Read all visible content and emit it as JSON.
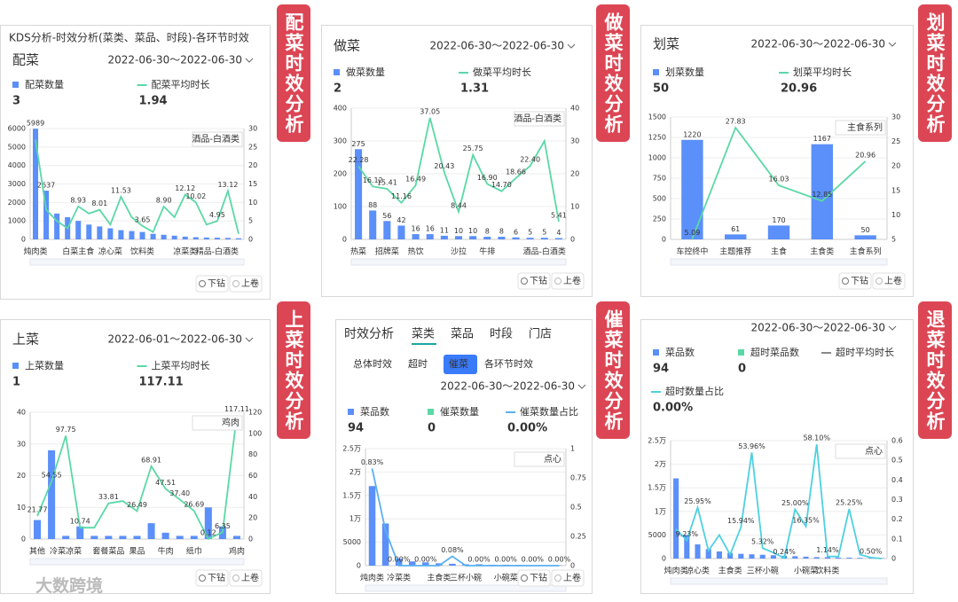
{
  "header": "KDS分析-时效分析(菜类、菜品、时段)-各环节时效",
  "watermark": "大数跨境",
  "buttons": [
    "下钻",
    "上卷"
  ],
  "panels": [
    {
      "tag": "配菜时效分析",
      "title": "配菜",
      "date": "2022-06-30～2022-06-30",
      "metrics": [
        {
          "name": "配菜数量",
          "value": 3,
          "color": "#5b8ff9",
          "shape": "square"
        },
        {
          "name": "配菜平均时长",
          "value": 1.94,
          "color": "#5ad8a6",
          "shape": "line"
        }
      ],
      "chart": {
        "type": "bar-line",
        "hover_label": "酒品-白酒类",
        "categories": [
          "炖肉类",
          null,
          null,
          null,
          "白菜主食",
          null,
          null,
          "凉心菜",
          null,
          null,
          "饮料类",
          null,
          null,
          null,
          "凉菜类",
          null,
          null,
          "精品-白酒类",
          null,
          null
        ],
        "ylim": [
          0,
          6000
        ],
        "yticks": [
          0,
          1000,
          2000,
          3000,
          4000,
          5000,
          6000
        ],
        "y2lim": [
          0,
          30
        ],
        "y2ticks": [
          0,
          5,
          10,
          15,
          20,
          25,
          30
        ],
        "series": [
          {
            "color": "#5b8ff9",
            "values": [
              5989,
              2637,
              1400,
              1200,
              1000,
              800,
              700,
              600,
              500,
              450,
              400,
              300,
              250,
              200,
              150,
              120,
              100,
              90,
              80,
              60
            ],
            "value_labels": [
              "5989",
              "2637",
              null,
              null,
              null,
              null,
              null,
              null,
              null,
              null,
              null,
              null,
              null,
              null,
              null,
              null,
              null,
              null,
              null,
              null
            ]
          },
          {
            "color": "#5ad8a6",
            "axis": "y2",
            "values": [
              27,
              8,
              5,
              3,
              8.93,
              7,
              8.01,
              4,
              11.53,
              6,
              3.65,
              2,
              8.9,
              6,
              12.12,
              10.02,
              4,
              4.95,
              13.12,
              1.5
            ],
            "value_labels": [
              null,
              null,
              null,
              null,
              "8.93",
              null,
              "8.01",
              null,
              "11.53",
              null,
              "3.65",
              null,
              "8.90",
              null,
              "12.12",
              "10.02",
              null,
              "4.95",
              "13.12",
              null
            ]
          }
        ]
      },
      "buttons": true
    },
    {
      "tag": "做菜时效分析",
      "title": "做菜",
      "date": "2022-06-30～2022-06-30",
      "metrics": [
        {
          "name": "做菜数量",
          "value": 2,
          "color": "#5b8ff9",
          "shape": "square"
        },
        {
          "name": "做菜平均时长",
          "value": 1.31,
          "color": "#5ad8a6",
          "shape": "line"
        }
      ],
      "chart": {
        "type": "bar-line",
        "hover_label": "酒品-白酒类",
        "categories": [
          "热菜",
          null,
          "招牌菜",
          null,
          "热饮",
          null,
          null,
          "沙拉",
          null,
          "牛排",
          null,
          null,
          null,
          "酒品-白酒类",
          null
        ],
        "ylim": [
          0,
          400
        ],
        "yticks": [
          0,
          100,
          200,
          300,
          400
        ],
        "y2lim": [
          0,
          40
        ],
        "y2ticks": [
          0,
          10,
          20,
          30,
          40
        ],
        "series": [
          {
            "color": "#5b8ff9",
            "values": [
              275,
              88,
              56,
              42,
              16,
              16,
              11,
              10,
              10,
              8,
              8,
              6,
              5,
              5,
              4
            ],
            "value_labels": [
              "275",
              "88",
              "56",
              "42",
              "16",
              "16",
              "11",
              "10",
              "10",
              "8",
              "8",
              "6",
              "5",
              "5",
              "4"
            ]
          },
          {
            "color": "#5ad8a6",
            "axis": "y2",
            "values": [
              22.28,
              16.12,
              15.41,
              11.16,
              16.49,
              37.05,
              20.43,
              8.44,
              25.75,
              16.9,
              14.7,
              18.66,
              22.4,
              30,
              5.41
            ],
            "value_labels": [
              "22.28",
              "16.12",
              "15.41",
              "11.16",
              "16.49",
              "37.05",
              "20.43",
              "8.44",
              "25.75",
              "16.90",
              "14.70",
              "18.66",
              "22.40",
              null,
              "5.41"
            ]
          }
        ]
      },
      "buttons": true
    },
    {
      "tag": "划菜时效分析",
      "title": "划菜",
      "date": "2022-06-30～2022-06-30",
      "metrics": [
        {
          "name": "划菜数量",
          "value": 50,
          "color": "#5b8ff9",
          "shape": "square"
        },
        {
          "name": "划菜平均时长",
          "value": 20.96,
          "color": "#5ad8a6",
          "shape": "line"
        }
      ],
      "chart": {
        "type": "bar-line",
        "hover_label": "主食系列",
        "categories": [
          "车控终中",
          "主题推荐",
          "主食",
          "主食类",
          "主食系列"
        ],
        "ylim": [
          0,
          1500
        ],
        "yticks": [
          0,
          250,
          500,
          750,
          1000,
          1250,
          1500
        ],
        "y2lim": [
          5,
          30
        ],
        "y2ticks": [
          5,
          10,
          15,
          20,
          25,
          30
        ],
        "series": [
          {
            "color": "#5b8ff9",
            "values": [
              1220,
              61,
              170,
              1167,
              50
            ],
            "value_labels": [
              "1220",
              "61",
              "170",
              "1167",
              "50"
            ]
          },
          {
            "color": "#5ad8a6",
            "axis": "y2",
            "values": [
              5.09,
              27.83,
              16.03,
              12.85,
              20.96
            ],
            "value_labels": [
              "5.09",
              "27.83",
              "16.03",
              "12.85",
              "20.96"
            ]
          }
        ]
      },
      "buttons": true
    },
    {
      "tag": "上菜时效分析",
      "title": "上菜",
      "date": "2022-06-01～2022-06-30",
      "metrics": [
        {
          "name": "上菜数量",
          "value": 1,
          "color": "#5b8ff9",
          "shape": "square"
        },
        {
          "name": "上菜平均时长",
          "value": 117.11,
          "color": "#5ad8a6",
          "shape": "line"
        }
      ],
      "chart": {
        "type": "bar-line",
        "hover_label": "鸡肉",
        "categories": [
          "其他",
          null,
          "冷菜凉菜",
          null,
          null,
          "套餐菜品",
          null,
          "果品",
          null,
          "牛肉",
          null,
          "纸巾",
          null,
          null,
          "鸡肉"
        ],
        "ylim": [
          0,
          40
        ],
        "yticks": [
          0,
          10,
          20,
          30,
          40
        ],
        "y2lim": [
          0,
          120
        ],
        "y2ticks": [
          0,
          20,
          40,
          60,
          80,
          100,
          120
        ],
        "series": [
          {
            "color": "#5b8ff9",
            "values": [
              6,
              28,
              1,
              4,
              1,
              1,
              1,
              1,
              5,
              2,
              1,
              1,
              10,
              4,
              1
            ],
            "value_labels": [
              null,
              null,
              null,
              null,
              null,
              null,
              null,
              null,
              null,
              null,
              null,
              null,
              null,
              null,
              null
            ]
          },
          {
            "color": "#5ad8a6",
            "axis": "y2",
            "values": [
              21.77,
              54.55,
              97.75,
              10.74,
              10.74,
              33.81,
              36,
              26.49,
              68.91,
              47.51,
              37.4,
              26.69,
              0.12,
              6.35,
              117.11
            ],
            "value_labels": [
              "21.77",
              "54.55",
              "97.75",
              "10.74",
              null,
              "33.81",
              null,
              "26.49",
              "68.91",
              "47.51",
              "37.40",
              "26.69",
              "0.12",
              "6.35",
              "117.11"
            ]
          }
        ]
      },
      "buttons": true
    },
    {
      "tag": "催菜时效分析",
      "tabs": [
        "时效分析",
        "菜类",
        "菜品",
        "时段",
        "门店"
      ],
      "active_tab": 1,
      "subtabs": [
        "总体时效",
        "超时",
        "催菜",
        "各环节时效"
      ],
      "active_subtab": 2,
      "date": "2022-06-30～2022-06-30",
      "metrics": [
        {
          "name": "菜品数",
          "value": 94,
          "color": "#5b8ff9",
          "shape": "square"
        },
        {
          "name": "催菜数量",
          "value": 0,
          "color": "#5ad8a6",
          "shape": "square"
        },
        {
          "name": "催菜数量占比",
          "value": "0.00%",
          "color": "#5ab0f0",
          "shape": "line"
        }
      ],
      "chart": {
        "type": "bar-line",
        "hover_label": "点心",
        "categories": [
          "炖肉类",
          null,
          "冷菜类",
          null,
          null,
          "主食类",
          null,
          "三杯小碗",
          null,
          null,
          "小碗菜",
          null,
          null,
          null,
          "点心"
        ],
        "ylim": [
          0,
          25000
        ],
        "yticks": [
          0,
          5000,
          {
            "value": 10000,
            "label": "1万"
          },
          {
            "value": 15000,
            "label": "1.5万"
          },
          {
            "value": 20000,
            "label": "2万"
          },
          {
            "value": 25000,
            "label": "2.5万"
          }
        ],
        "y2lim": [
          0,
          1
        ],
        "y2ticks": [
          0,
          0.25,
          0.5,
          0.75,
          1
        ],
        "series": [
          {
            "color": "#5b8ff9",
            "values": [
              17000,
              9000,
              1500,
              900,
              700,
              500,
              400,
              300,
              300,
              200,
              200,
              150,
              100,
              100,
              80
            ],
            "value_labels": [
              null,
              null,
              null,
              null,
              null,
              null,
              null,
              null,
              null,
              null,
              null,
              null,
              null,
              null,
              null
            ]
          },
          {
            "color": "#5ab0f0",
            "axis": "y2",
            "values": [
              0.83,
              0.3,
              0,
              0,
              0,
              0,
              0.08,
              0,
              0,
              0,
              0,
              0,
              0,
              0,
              0
            ],
            "value_labels": [
              "0.83%",
              null,
              "0.00%",
              null,
              "0.00%",
              null,
              "0.08%",
              null,
              "0.00%",
              null,
              "0.00%",
              null,
              "0.00%",
              null,
              "0.00%"
            ]
          }
        ]
      },
      "buttons": true
    },
    {
      "tag": "退菜时效分析",
      "date": "2022-06-30～2022-06-30",
      "metrics": [
        {
          "name": "菜品数",
          "value": 94,
          "color": "#5b8ff9",
          "shape": "square"
        },
        {
          "name": "超时菜品数",
          "value": 0,
          "color": "#5ad8a6",
          "shape": "square"
        },
        {
          "name": "超时平均时长",
          "color": "#888888",
          "shape": "line"
        },
        {
          "name": "超时数量占比",
          "value": "0.00%",
          "color": "#4dd0e1",
          "shape": "line"
        }
      ],
      "chart": {
        "type": "bar-line",
        "hover_label": "点心",
        "categories": [
          "炖肉类",
          null,
          "凉心类",
          null,
          null,
          "主食类",
          null,
          null,
          "三杯小碗",
          null,
          null,
          null,
          "小碗菜",
          null,
          "饮料类",
          null,
          null,
          null,
          null,
          null
        ],
        "ylim": [
          0,
          25000
        ],
        "yticks": [
          0,
          5000,
          {
            "value": 10000,
            "label": "1万"
          },
          {
            "value": 15000,
            "label": "1.5万"
          },
          {
            "value": 20000,
            "label": "2万"
          },
          {
            "value": 25000,
            "label": "2.5万"
          }
        ],
        "y2lim": [
          0,
          0.6
        ],
        "y2ticks": [
          0,
          0.1,
          0.2,
          0.3,
          0.4,
          0.5,
          0.6
        ],
        "series": [
          {
            "color": "#5b8ff9",
            "values": [
              17000,
              5000,
              3000,
              2000,
              1500,
              1200,
              1000,
              900,
              800,
              700,
              600,
              500,
              400,
              300,
              300,
              200,
              200,
              150,
              100,
              100
            ],
            "value_labels": [
              null,
              null,
              null,
              null,
              null,
              null,
              null,
              null,
              null,
              null,
              null,
              null,
              null,
              null,
              null,
              null,
              null,
              null,
              null,
              null
            ]
          },
          {
            "color": "#4dd0e1",
            "axis": "y2",
            "values": [
              0.15,
              0.0923,
              0.2595,
              0.04,
              0.12,
              0.02,
              0.1594,
              0.5396,
              0.0532,
              0.03,
              0.0024,
              0.25,
              0.1635,
              0.581,
              0.0114,
              0.01,
              0.2525,
              0.02,
              0.005,
              0
            ],
            "value_labels": [
              null,
              "9.23%",
              "25.95%",
              null,
              null,
              null,
              "15.94%",
              "53.96%",
              "5.32%",
              null,
              "0.24%",
              "25.00%",
              "16.35%",
              "58.10%",
              "1.14%",
              null,
              "25.25%",
              null,
              "0.50%",
              null
            ]
          }
        ]
      },
      "buttons": false
    }
  ]
}
